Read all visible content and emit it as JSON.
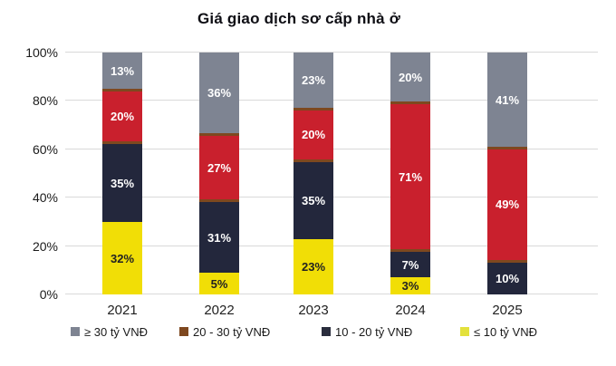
{
  "title": "Giá giao dịch sơ cấp nhà ở",
  "chart_data": {
    "type": "bar",
    "stacked": true,
    "stack_unit": "percent",
    "title": "Giá giao dịch sơ cấp nhà ở",
    "categories": [
      "2021",
      "2022",
      "2023",
      "2024",
      "2025"
    ],
    "series": [
      {
        "name": "≤ 10 tỷ VNĐ",
        "color": "#F1DE06",
        "label_color": "#222222",
        "values": [
          32,
          5,
          23,
          3,
          0
        ]
      },
      {
        "name": "10 - 20 tỷ VNĐ",
        "color": "#23273C",
        "label_color": "#FFFFFF",
        "values": [
          35,
          31,
          35,
          7,
          10
        ]
      },
      {
        "name": "20 - 30 tỷ VNĐ",
        "color": "#C9202D",
        "edge_color": "#7E481F",
        "label_color": "#FFFFFF",
        "values": [
          20,
          27,
          20,
          71,
          49
        ]
      },
      {
        "name": "≥ 30 tỷ VNĐ",
        "color": "#7E8492",
        "label_color": "#FFFFFF",
        "values": [
          13,
          36,
          23,
          20,
          41
        ]
      }
    ],
    "value_suffix": "%",
    "y_axis": {
      "min": 0,
      "max": 100,
      "ticks": [
        "0%",
        "20%",
        "40%",
        "60%",
        "80%",
        "100%"
      ]
    },
    "grid": true,
    "gridline_color": "#d9d9d9",
    "legend_position": "bottom",
    "legend": [
      {
        "label": "≥ 30 tỷ VNĐ",
        "marker_color": "#7E8492"
      },
      {
        "label": "20 - 30 tỷ VNĐ",
        "marker_color": "#7E481F"
      },
      {
        "label": "10 - 20 tỷ VNĐ",
        "marker_color": "#2A2D3D"
      },
      {
        "label": "≤ 10 tỷ VNĐ",
        "marker_color": "#E3E13C"
      }
    ]
  }
}
